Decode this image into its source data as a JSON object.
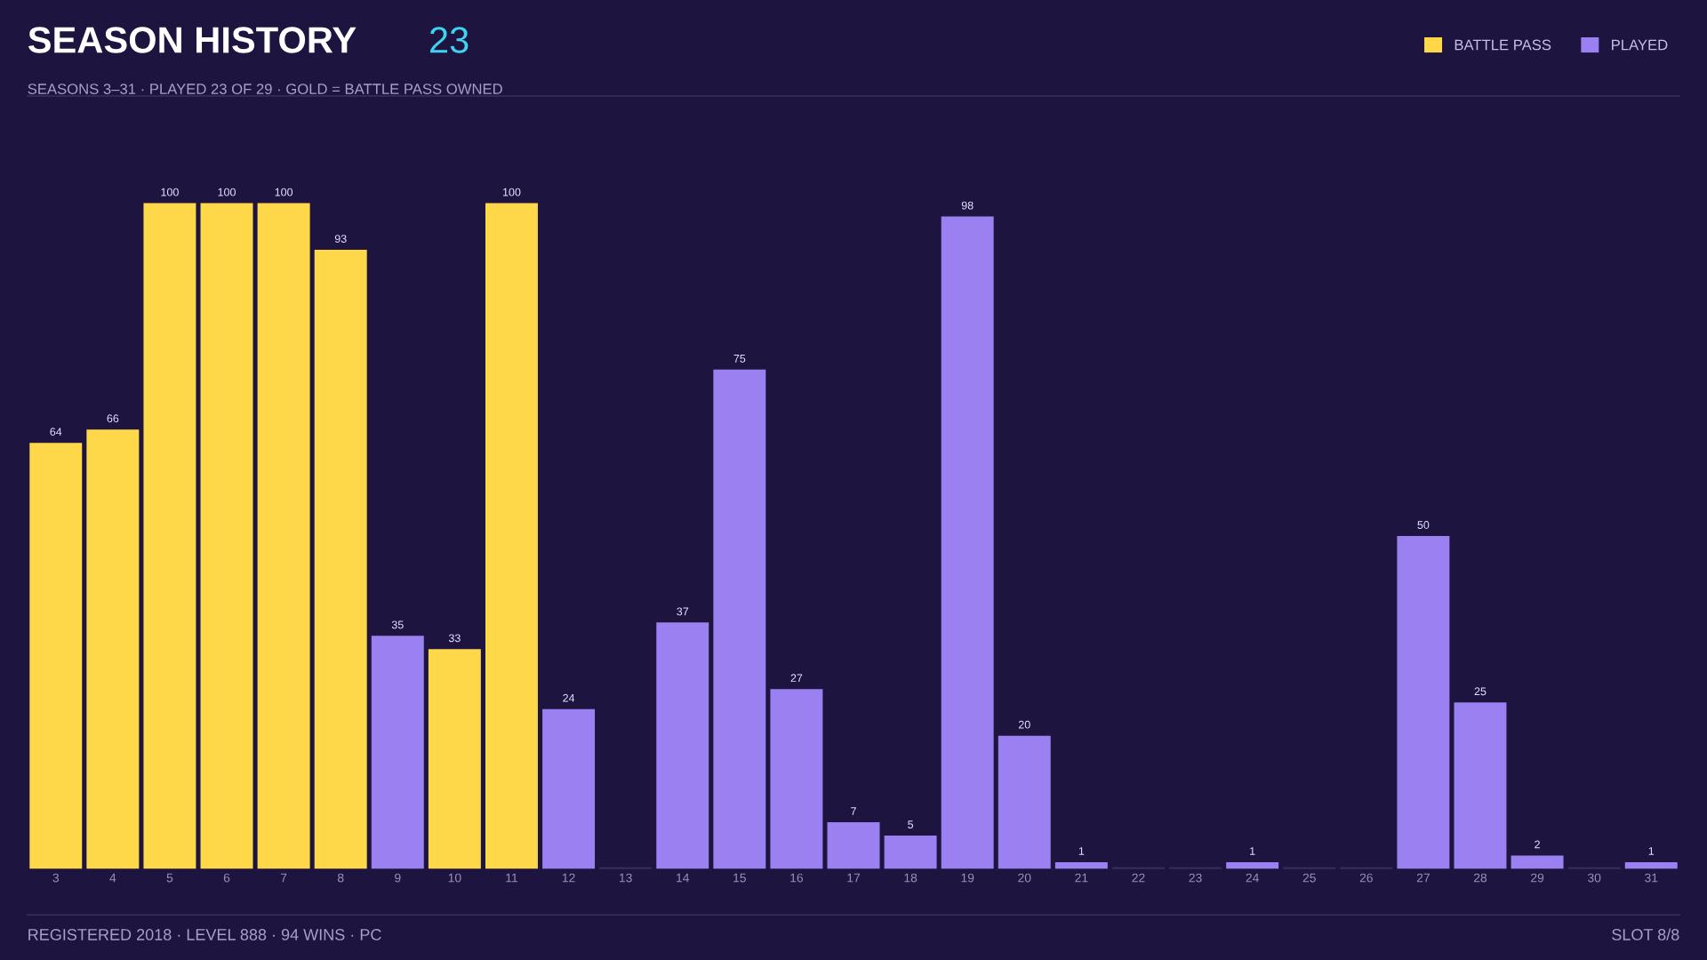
{
  "chart_data": {
    "type": "bar",
    "title": "SEASON HISTORY",
    "subtitle": "SEASONS 3–31 · PLAYED 23 OF 29 · GOLD = BATTLE PASS OWNED",
    "annotations": [
      "23",
      "REGISTERED 2018 · LEVEL 888 · 94 WINS · PC",
      "SLOT 8/8"
    ],
    "categories": [
      "3",
      "4",
      "5",
      "6",
      "7",
      "8",
      "9",
      "10",
      "11",
      "12",
      "13",
      "14",
      "15",
      "16",
      "17",
      "18",
      "19",
      "20",
      "21",
      "22",
      "23",
      "24",
      "25",
      "26",
      "27",
      "28",
      "29",
      "30",
      "31"
    ],
    "series": [
      {
        "name": "BATTLE PASS",
        "color": "#ffd84a",
        "values": [
          64,
          66,
          100,
          100,
          100,
          93,
          null,
          33,
          100,
          null,
          null,
          null,
          null,
          null,
          null,
          null,
          null,
          null,
          null,
          null,
          null,
          null,
          null,
          null,
          null,
          null,
          null,
          null,
          null
        ],
        "value_labels": [
          "64",
          "66",
          "100",
          "100",
          "100",
          "93",
          null,
          "33",
          "100",
          null,
          null,
          null,
          null,
          null,
          null,
          null,
          null,
          null,
          null,
          null,
          null,
          null,
          null,
          null,
          null,
          null,
          null,
          null,
          null
        ]
      },
      {
        "name": "PLAYED",
        "color": "#9a80f0",
        "colors": [
          null,
          null,
          null,
          null,
          null,
          null,
          "#9a80f0",
          null,
          null,
          "#9a80f0",
          "#3b3458",
          "#9a80f0",
          "#9a80f0",
          "#9a80f0",
          "#9a80f0",
          "#9a80f0",
          "#9a80f0",
          "#9a80f0",
          "#9a80f0",
          "#3b3458",
          "#3b3458",
          "#9a80f0",
          "#3b3458",
          "#3b3458",
          "#9a80f0",
          "#9a80f0",
          "#9a80f0",
          "#3b3458",
          "#9a80f0"
        ],
        "values": [
          null,
          null,
          null,
          null,
          null,
          null,
          35,
          null,
          null,
          24,
          0,
          37,
          75,
          27,
          7,
          5,
          98,
          20,
          1,
          0,
          0,
          1,
          0,
          0,
          50,
          25,
          2,
          0,
          1
        ],
        "value_labels": [
          null,
          null,
          null,
          null,
          null,
          null,
          "35",
          null,
          null,
          "24",
          null,
          "37",
          "75",
          "27",
          "7",
          "5",
          "98",
          "20",
          "1",
          null,
          null,
          "1",
          null,
          null,
          "50",
          "25",
          "2",
          null,
          "1"
        ]
      }
    ],
    "legend": "top right",
    "tick_labels": "x",
    "grid": false
  }
}
